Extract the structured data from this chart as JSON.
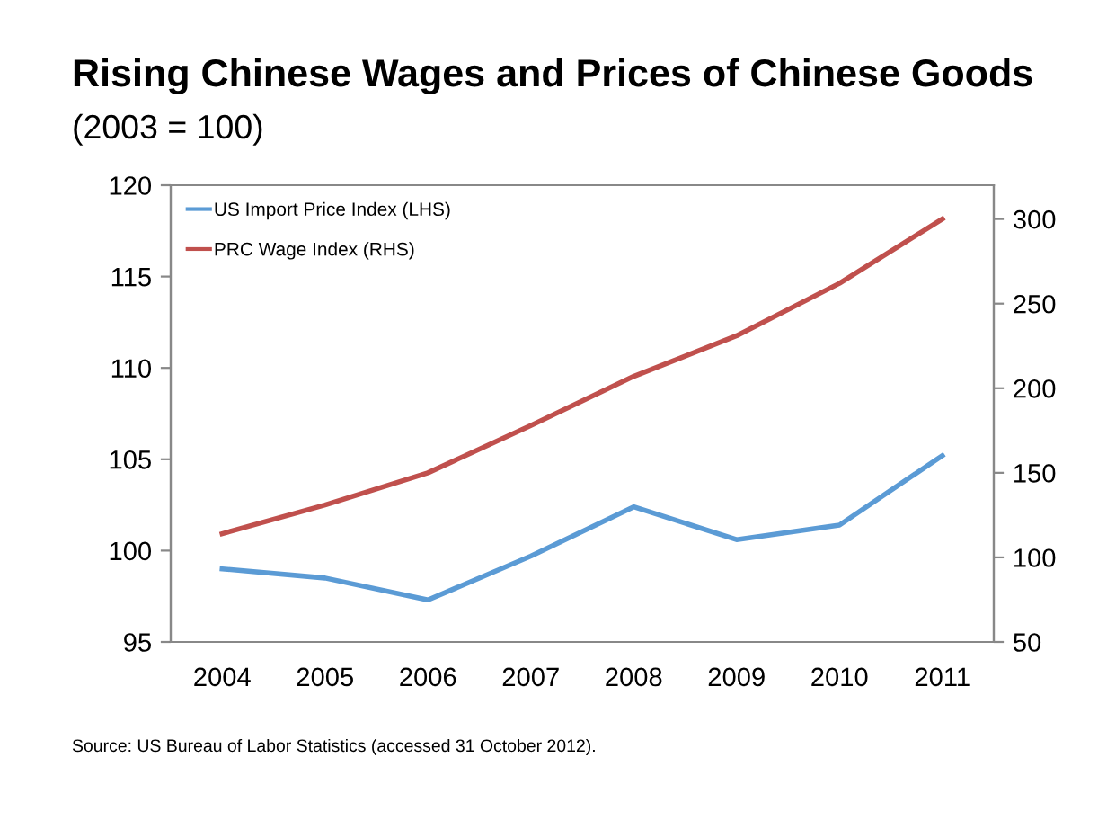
{
  "chart_data": {
    "type": "line",
    "title": "Rising Chinese Wages and Prices of Chinese Goods",
    "subtitle": "(2003 = 100)",
    "categories": [
      "2004",
      "2005",
      "2006",
      "2007",
      "2008",
      "2009",
      "2010",
      "2011"
    ],
    "series": [
      {
        "name": "US Import Price Index (LHS)",
        "color": "#5b9bd5",
        "values": [
          99.0,
          98.5,
          97.3,
          99.7,
          102.4,
          100.6,
          101.4,
          105.2
        ]
      },
      {
        "name": "PRC Wage Index (RHS)",
        "color": "#c0504d",
        "axis": "y2",
        "values": [
          114,
          131,
          150,
          178,
          207,
          231,
          262,
          300
        ]
      }
    ],
    "ylim": [
      95,
      120
    ],
    "yticks": [
      95,
      100,
      105,
      110,
      115,
      120
    ],
    "y2lim": [
      50,
      320
    ],
    "y2ticks": [
      50,
      100,
      150,
      200,
      250,
      300
    ],
    "legend": "top left",
    "grid": false,
    "marker": "none",
    "line_style": "solid",
    "annotations": [
      "Source: US Bureau of Labor Statistics (accessed 31 October 2012)."
    ]
  }
}
